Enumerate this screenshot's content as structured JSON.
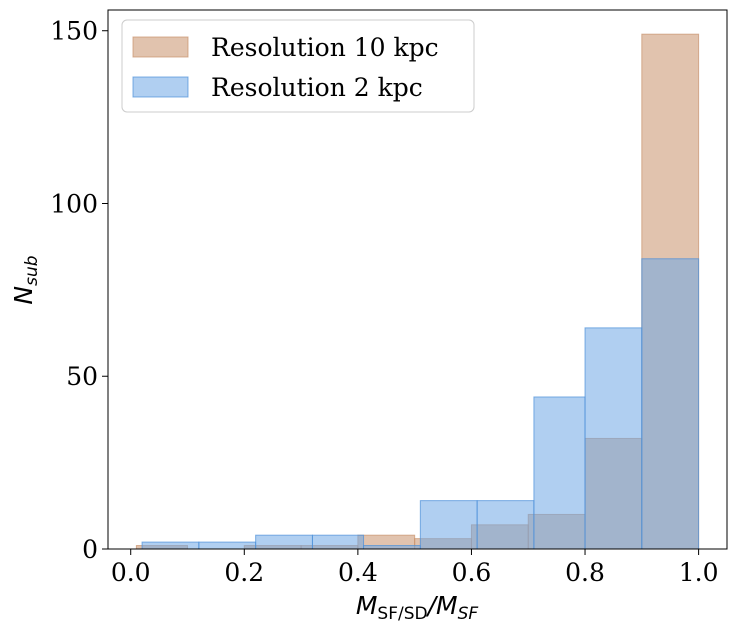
{
  "chart_data": {
    "type": "bar",
    "title": "",
    "xlabel": {
      "main": "M",
      "sub1": "SF/SD",
      "slash": "/M",
      "sub2": "SF"
    },
    "ylabel": {
      "main": "N",
      "sub": "sub"
    },
    "xlim": [
      -0.04,
      1.05
    ],
    "ylim": [
      0,
      156
    ],
    "xticks": [
      0.0,
      0.2,
      0.4,
      0.6,
      0.8,
      1.0
    ],
    "xtick_labels": [
      "0.0",
      "0.2",
      "0.4",
      "0.6",
      "0.8",
      "1.0"
    ],
    "yticks": [
      0,
      50,
      100,
      150
    ],
    "ytick_labels": [
      "0",
      "50",
      "100",
      "150"
    ],
    "legend_position": "upper-left",
    "series": [
      {
        "name": "Resolution 10 kpc",
        "color": "#c8926b",
        "edge": "#c8926b",
        "bins": [
          {
            "x0": 0.01,
            "x1": 0.1,
            "value": 1
          },
          {
            "x0": 0.1,
            "x1": 0.2,
            "value": 0
          },
          {
            "x0": 0.2,
            "x1": 0.3,
            "value": 1
          },
          {
            "x0": 0.3,
            "x1": 0.4,
            "value": 1
          },
          {
            "x0": 0.4,
            "x1": 0.5,
            "value": 4
          },
          {
            "x0": 0.5,
            "x1": 0.6,
            "value": 3
          },
          {
            "x0": 0.6,
            "x1": 0.7,
            "value": 7
          },
          {
            "x0": 0.7,
            "x1": 0.8,
            "value": 10
          },
          {
            "x0": 0.8,
            "x1": 0.9,
            "value": 32
          },
          {
            "x0": 0.9,
            "x1": 1.0,
            "value": 149
          }
        ]
      },
      {
        "name": "Resolution 2 kpc",
        "color": "#6fa8e6",
        "edge": "#4a8fd8",
        "bins": [
          {
            "x0": 0.02,
            "x1": 0.12,
            "value": 2
          },
          {
            "x0": 0.12,
            "x1": 0.22,
            "value": 2
          },
          {
            "x0": 0.22,
            "x1": 0.32,
            "value": 4
          },
          {
            "x0": 0.32,
            "x1": 0.41,
            "value": 4
          },
          {
            "x0": 0.41,
            "x1": 0.51,
            "value": 1
          },
          {
            "x0": 0.51,
            "x1": 0.61,
            "value": 14
          },
          {
            "x0": 0.61,
            "x1": 0.71,
            "value": 14
          },
          {
            "x0": 0.71,
            "x1": 0.8,
            "value": 44
          },
          {
            "x0": 0.8,
            "x1": 0.9,
            "value": 64
          },
          {
            "x0": 0.9,
            "x1": 1.0,
            "value": 84
          }
        ]
      }
    ]
  }
}
